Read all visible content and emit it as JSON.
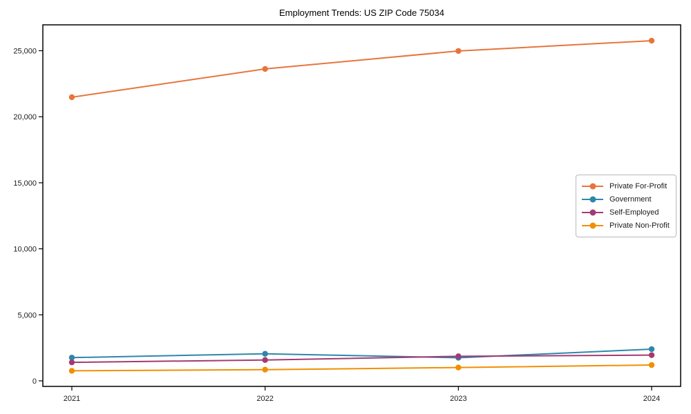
{
  "chart_data": {
    "type": "line",
    "title": "Employment Trends: US ZIP Code 75034",
    "categories": [
      "2021",
      "2022",
      "2023",
      "2024"
    ],
    "series": [
      {
        "name": "Private For-Profit",
        "color": "#E8743B",
        "values": [
          21480,
          23620,
          24980,
          25760
        ]
      },
      {
        "name": "Government",
        "color": "#2E86AB",
        "values": [
          1760,
          2050,
          1750,
          2400
        ]
      },
      {
        "name": "Self-Employed",
        "color": "#A23B72",
        "values": [
          1400,
          1580,
          1860,
          1950
        ]
      },
      {
        "name": "Private Non-Profit",
        "color": "#F18F01",
        "values": [
          760,
          850,
          1010,
          1200
        ]
      }
    ],
    "xlabel": "",
    "ylabel": "",
    "ylim": [
      -420,
      26960
    ],
    "yticks": [
      0,
      5000,
      10000,
      15000,
      20000,
      25000
    ],
    "ytick_labels": [
      "0",
      "5,000",
      "10,000",
      "15,000",
      "20,000",
      "25,000"
    ],
    "grid": false,
    "legend_position": "center-right",
    "marker": "circle",
    "axis_color": "#000000",
    "background_color": "#ffffff"
  }
}
